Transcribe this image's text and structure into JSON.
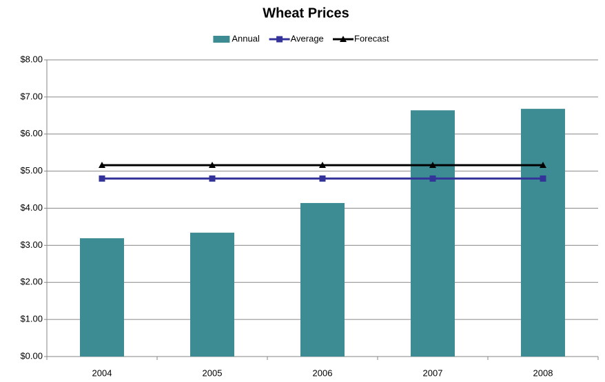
{
  "chart_data": {
    "type": "bar",
    "title": "Wheat Prices",
    "categories": [
      "2004",
      "2005",
      "2006",
      "2007",
      "2008"
    ],
    "series": [
      {
        "name": "Annual",
        "type": "bar",
        "color": "#3d8c93",
        "values": [
          3.19,
          3.34,
          4.14,
          6.64,
          6.68
        ]
      },
      {
        "name": "Average",
        "type": "line",
        "marker": "square",
        "color": "#333399",
        "values": [
          4.8,
          4.8,
          4.8,
          4.8,
          4.8
        ]
      },
      {
        "name": "Forecast",
        "type": "line",
        "marker": "triangle",
        "color": "#000000",
        "values": [
          5.16,
          5.16,
          5.16,
          5.16,
          5.16
        ]
      }
    ],
    "ylim": [
      0,
      8
    ],
    "yticks": [
      {
        "value": 0,
        "label": "$0.00"
      },
      {
        "value": 1,
        "label": "$1.00"
      },
      {
        "value": 2,
        "label": "$2.00"
      },
      {
        "value": 3,
        "label": "$3.00"
      },
      {
        "value": 4,
        "label": "$4.00"
      },
      {
        "value": 5,
        "label": "$5.00"
      },
      {
        "value": 6,
        "label": "$6.00"
      },
      {
        "value": 7,
        "label": "$7.00"
      },
      {
        "value": 8,
        "label": "$8.00"
      }
    ],
    "grid": true,
    "legend": "top"
  }
}
